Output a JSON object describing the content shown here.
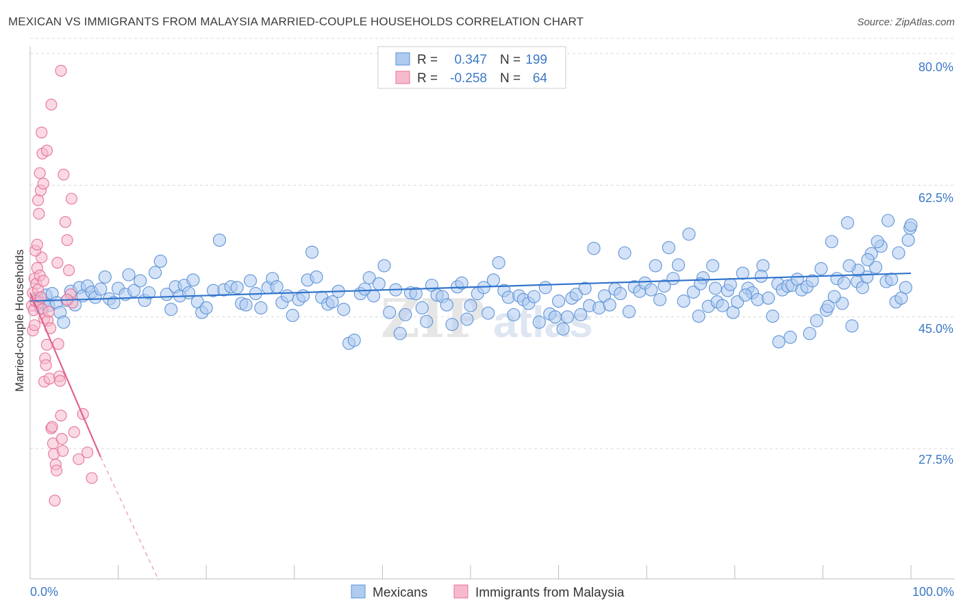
{
  "header": {
    "title": "MEXICAN VS IMMIGRANTS FROM MALAYSIA MARRIED-COUPLE HOUSEHOLDS CORRELATION CHART",
    "source": "Source: ZipAtlas.com"
  },
  "legend": {
    "series1": {
      "r_label": "R =",
      "r_value": "0.347",
      "n_label": "N =",
      "n_value": "199"
    },
    "series2": {
      "r_label": "R =",
      "r_value": "-0.258",
      "n_label": "N =",
      "n_value": "64"
    }
  },
  "bottom_legend": {
    "series1": "Mexicans",
    "series2": "Immigrants from Malaysia"
  },
  "watermark": {
    "part1": "ZIP",
    "part2": "atlas"
  },
  "colors": {
    "blue_fill": "#aecbf0",
    "blue_stroke": "#5e93d6",
    "blue_line": "#2f73cc",
    "pink_fill": "#f7b9cc",
    "pink_stroke": "#e4729a",
    "pink_line": "#e0608e",
    "tick_text": "#3b78c6",
    "grid": "#d8d8d8"
  },
  "chart_data": {
    "type": "scatter",
    "title": "MEXICAN VS IMMIGRANTS FROM MALAYSIA MARRIED-COUPLE HOUSEHOLDS CORRELATION CHART",
    "xlabel": "",
    "ylabel": "Married-couple Households",
    "xlim": [
      0,
      100
    ],
    "ylim": [
      10,
      82
    ],
    "x_tick_labels": [
      "0.0%",
      "100.0%"
    ],
    "y_ticks": [
      27.5,
      45.0,
      62.5,
      80.0
    ],
    "y_tick_labels": [
      "27.5%",
      "45.0%",
      "62.5%",
      "80.0%"
    ],
    "grid": true,
    "legend_position": "top-center",
    "series": [
      {
        "name": "Mexicans",
        "r": 0.347,
        "n": 199,
        "trend": {
          "x": [
            0,
            100
          ],
          "y": [
            47.1,
            50.8
          ]
        },
        "points": [
          [
            0.8,
            47.5
          ],
          [
            1.2,
            46.2
          ],
          [
            1.5,
            46.8
          ],
          [
            1.8,
            47.9
          ],
          [
            2.1,
            46.5
          ],
          [
            2.5,
            48.1
          ],
          [
            3.0,
            46.9
          ],
          [
            3.4,
            45.6
          ],
          [
            3.8,
            44.3
          ],
          [
            4.2,
            47.2
          ],
          [
            4.6,
            48.4
          ],
          [
            5.1,
            46.6
          ],
          [
            5.6,
            48.9
          ],
          [
            6.0,
            47.8
          ],
          [
            6.5,
            49.1
          ],
          [
            7.0,
            48.3
          ],
          [
            7.4,
            47.6
          ],
          [
            8.0,
            48.7
          ],
          [
            8.5,
            50.3
          ],
          [
            9.0,
            47.4
          ],
          [
            9.5,
            46.9
          ],
          [
            10.0,
            48.8
          ],
          [
            10.8,
            48.0
          ],
          [
            11.2,
            50.6
          ],
          [
            11.8,
            48.5
          ],
          [
            12.5,
            49.8
          ],
          [
            13.0,
            47.2
          ],
          [
            13.5,
            48.2
          ],
          [
            14.2,
            50.9
          ],
          [
            14.8,
            52.4
          ],
          [
            15.5,
            48.0
          ],
          [
            16.0,
            46.0
          ],
          [
            16.5,
            49.0
          ],
          [
            17.0,
            47.8
          ],
          [
            17.5,
            49.2
          ],
          [
            18.0,
            48.2
          ],
          [
            18.5,
            49.9
          ],
          [
            19.0,
            47.0
          ],
          [
            19.5,
            45.6
          ],
          [
            20.0,
            46.2
          ],
          [
            20.8,
            48.5
          ],
          [
            21.5,
            55.2
          ],
          [
            22.0,
            48.6
          ],
          [
            22.8,
            49.0
          ],
          [
            23.5,
            48.9
          ],
          [
            24.0,
            46.8
          ],
          [
            24.5,
            46.6
          ],
          [
            25.0,
            49.8
          ],
          [
            25.6,
            48.1
          ],
          [
            26.2,
            46.2
          ],
          [
            27.0,
            48.9
          ],
          [
            27.5,
            50.1
          ],
          [
            28.0,
            49.0
          ],
          [
            28.6,
            46.9
          ],
          [
            29.2,
            47.8
          ],
          [
            29.8,
            45.2
          ],
          [
            30.5,
            47.3
          ],
          [
            31.0,
            47.8
          ],
          [
            31.5,
            49.9
          ],
          [
            32.0,
            53.6
          ],
          [
            32.5,
            50.3
          ],
          [
            33.1,
            47.6
          ],
          [
            33.8,
            46.7
          ],
          [
            34.3,
            47.0
          ],
          [
            35.0,
            48.4
          ],
          [
            35.6,
            46.0
          ],
          [
            36.2,
            41.5
          ],
          [
            36.8,
            41.9
          ],
          [
            37.5,
            48.1
          ],
          [
            38.0,
            48.7
          ],
          [
            38.5,
            50.2
          ],
          [
            39.0,
            47.8
          ],
          [
            39.6,
            49.4
          ],
          [
            40.2,
            51.8
          ],
          [
            40.8,
            45.6
          ],
          [
            41.5,
            48.6
          ],
          [
            42.0,
            42.8
          ],
          [
            42.6,
            45.3
          ],
          [
            43.2,
            48.2
          ],
          [
            43.8,
            48.1
          ],
          [
            44.5,
            46.2
          ],
          [
            45.0,
            44.4
          ],
          [
            45.6,
            49.2
          ],
          [
            46.2,
            47.9
          ],
          [
            46.8,
            47.7
          ],
          [
            47.3,
            46.6
          ],
          [
            47.9,
            44.0
          ],
          [
            48.5,
            49.0
          ],
          [
            49.0,
            49.5
          ],
          [
            49.6,
            44.7
          ],
          [
            50.0,
            46.5
          ],
          [
            50.8,
            48.1
          ],
          [
            51.5,
            48.9
          ],
          [
            52.0,
            45.5
          ],
          [
            52.6,
            49.9
          ],
          [
            53.2,
            52.2
          ],
          [
            53.8,
            48.5
          ],
          [
            54.3,
            47.6
          ],
          [
            54.9,
            45.3
          ],
          [
            55.5,
            47.8
          ],
          [
            56.0,
            47.3
          ],
          [
            56.6,
            46.8
          ],
          [
            57.2,
            47.7
          ],
          [
            57.8,
            44.3
          ],
          [
            58.5,
            48.9
          ],
          [
            59.0,
            45.4
          ],
          [
            59.6,
            45.0
          ],
          [
            60.0,
            47.1
          ],
          [
            60.5,
            43.4
          ],
          [
            61.0,
            45.0
          ],
          [
            61.5,
            47.5
          ],
          [
            62.0,
            48.0
          ],
          [
            62.5,
            45.3
          ],
          [
            63.0,
            48.8
          ],
          [
            63.5,
            46.5
          ],
          [
            64.0,
            54.1
          ],
          [
            64.6,
            46.2
          ],
          [
            65.2,
            47.8
          ],
          [
            65.8,
            46.6
          ],
          [
            66.4,
            48.7
          ],
          [
            67.0,
            48.1
          ],
          [
            67.5,
            53.5
          ],
          [
            68.0,
            45.7
          ],
          [
            68.6,
            49.0
          ],
          [
            69.2,
            48.4
          ],
          [
            69.8,
            49.5
          ],
          [
            70.5,
            48.6
          ],
          [
            71.0,
            51.8
          ],
          [
            71.5,
            47.3
          ],
          [
            72.0,
            49.1
          ],
          [
            72.5,
            54.2
          ],
          [
            73.0,
            50.1
          ],
          [
            73.6,
            51.9
          ],
          [
            74.2,
            47.1
          ],
          [
            74.8,
            56.0
          ],
          [
            75.3,
            48.3
          ],
          [
            75.9,
            45.1
          ],
          [
            76.4,
            50.2
          ],
          [
            77.0,
            46.4
          ],
          [
            77.5,
            51.8
          ],
          [
            78.0,
            47.0
          ],
          [
            78.6,
            46.5
          ],
          [
            79.2,
            48.5
          ],
          [
            79.8,
            45.6
          ],
          [
            80.3,
            47.0
          ],
          [
            80.9,
            50.8
          ],
          [
            81.5,
            48.8
          ],
          [
            82.0,
            48.2
          ],
          [
            82.6,
            47.3
          ],
          [
            83.2,
            51.8
          ],
          [
            83.8,
            47.5
          ],
          [
            84.3,
            45.1
          ],
          [
            84.9,
            49.4
          ],
          [
            85.4,
            48.6
          ],
          [
            86.0,
            49.1
          ],
          [
            86.5,
            49.2
          ],
          [
            87.1,
            50.0
          ],
          [
            87.6,
            48.6
          ],
          [
            88.2,
            49.0
          ],
          [
            88.8,
            49.8
          ],
          [
            89.3,
            44.5
          ],
          [
            89.8,
            51.4
          ],
          [
            90.4,
            45.9
          ],
          [
            91.0,
            55.0
          ],
          [
            91.6,
            50.1
          ],
          [
            92.2,
            46.8
          ],
          [
            92.8,
            57.5
          ],
          [
            93.3,
            43.8
          ],
          [
            93.9,
            49.7
          ],
          [
            94.5,
            48.9
          ],
          [
            95.0,
            50.3
          ],
          [
            95.5,
            53.4
          ],
          [
            96.0,
            51.6
          ],
          [
            96.6,
            54.4
          ],
          [
            97.2,
            49.7
          ],
          [
            97.8,
            50.0
          ],
          [
            98.3,
            47.0
          ],
          [
            98.9,
            47.5
          ],
          [
            99.4,
            48.9
          ],
          [
            99.9,
            56.8
          ],
          [
            100.0,
            57.2
          ],
          [
            99.7,
            55.2
          ],
          [
            98.6,
            53.5
          ],
          [
            97.4,
            57.8
          ],
          [
            96.2,
            55.0
          ],
          [
            95.1,
            52.6
          ],
          [
            94.0,
            51.2
          ],
          [
            93.0,
            51.8
          ],
          [
            92.4,
            49.5
          ],
          [
            91.3,
            47.7
          ],
          [
            90.6,
            46.4
          ],
          [
            88.5,
            42.8
          ],
          [
            86.3,
            42.3
          ],
          [
            85.0,
            41.7
          ],
          [
            83.0,
            50.4
          ],
          [
            81.2,
            47.9
          ],
          [
            79.5,
            49.3
          ],
          [
            77.8,
            48.8
          ],
          [
            76.1,
            49.4
          ]
        ]
      },
      {
        "name": "Immigrants from Malaysia",
        "r": -0.258,
        "n": 64,
        "trend": {
          "x": [
            0,
            8
          ],
          "y": [
            48.2,
            26.4
          ]
        },
        "trend_dashed": {
          "x": [
            8,
            14.6
          ],
          "y": [
            26.4,
            10.0
          ]
        },
        "points": [
          [
            0.2,
            46.5
          ],
          [
            0.3,
            48.2
          ],
          [
            0.4,
            45.9
          ],
          [
            0.5,
            50.1
          ],
          [
            0.6,
            47.1
          ],
          [
            0.7,
            49.4
          ],
          [
            0.8,
            51.5
          ],
          [
            0.9,
            48.6
          ],
          [
            1.0,
            46.9
          ],
          [
            1.1,
            50.5
          ],
          [
            1.2,
            47.6
          ],
          [
            1.3,
            52.9
          ],
          [
            1.4,
            46.0
          ],
          [
            1.5,
            49.8
          ],
          [
            1.6,
            44.8
          ],
          [
            0.3,
            43.2
          ],
          [
            0.5,
            43.9
          ],
          [
            0.6,
            53.8
          ],
          [
            0.8,
            54.6
          ],
          [
            0.9,
            60.5
          ],
          [
            1.0,
            58.7
          ],
          [
            1.1,
            64.1
          ],
          [
            1.2,
            61.8
          ],
          [
            1.3,
            69.5
          ],
          [
            1.4,
            66.7
          ],
          [
            1.5,
            62.7
          ],
          [
            1.6,
            36.4
          ],
          [
            1.7,
            39.5
          ],
          [
            1.8,
            38.6
          ],
          [
            1.9,
            41.3
          ],
          [
            2.0,
            44.5
          ],
          [
            2.1,
            45.7
          ],
          [
            2.2,
            36.8
          ],
          [
            2.3,
            43.5
          ],
          [
            2.4,
            30.2
          ],
          [
            2.5,
            30.4
          ],
          [
            2.6,
            28.2
          ],
          [
            2.7,
            26.8
          ],
          [
            2.8,
            20.6
          ],
          [
            2.9,
            25.4
          ],
          [
            3.0,
            24.6
          ],
          [
            3.1,
            52.2
          ],
          [
            3.2,
            41.4
          ],
          [
            3.3,
            37.1
          ],
          [
            3.4,
            36.5
          ],
          [
            3.5,
            31.9
          ],
          [
            3.6,
            28.8
          ],
          [
            3.7,
            27.2
          ],
          [
            3.8,
            63.9
          ],
          [
            4.0,
            57.6
          ],
          [
            4.2,
            55.2
          ],
          [
            4.4,
            51.2
          ],
          [
            4.6,
            48.0
          ],
          [
            4.7,
            60.7
          ],
          [
            4.8,
            46.9
          ],
          [
            5.0,
            29.7
          ],
          [
            5.5,
            26.1
          ],
          [
            6.0,
            32.1
          ],
          [
            6.5,
            27.0
          ],
          [
            7.0,
            23.6
          ],
          [
            3.5,
            77.7
          ],
          [
            4.2,
            47.3
          ],
          [
            2.4,
            73.2
          ],
          [
            1.9,
            67.1
          ]
        ]
      }
    ]
  }
}
